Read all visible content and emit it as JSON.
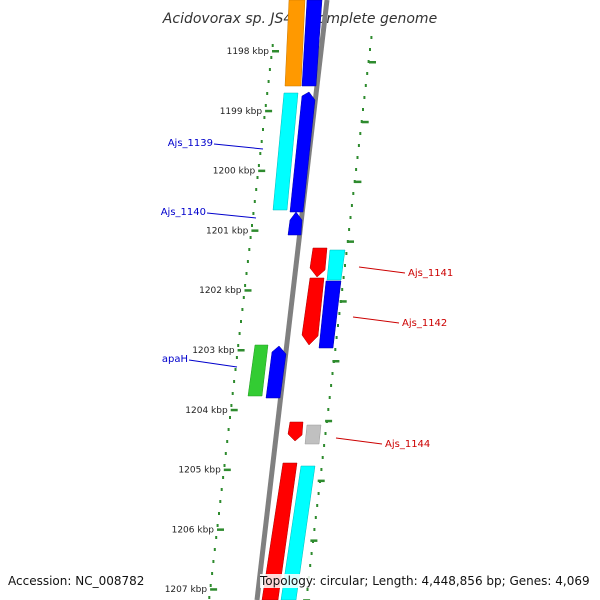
{
  "title": "Acidovorax sp. JS42, complete genome",
  "accession": "Accession: NC_008782",
  "topology": "Topology: circular; Length: 4,448,856 bp; Genes: 4,069",
  "colors": {
    "backbone": "#808080",
    "tick": "#2e8b2e",
    "label_forward": "#0000cc",
    "label_reverse": "#cc0000",
    "orange": "#ff9900",
    "blue": "#0000ff",
    "cyan": "#00ffff",
    "red": "#ff0000",
    "green": "#33cc33",
    "gray": "#c0c0c0"
  },
  "ticks": [
    {
      "label": "1198 kbp"
    },
    {
      "label": "1199 kbp"
    },
    {
      "label": "1200 kbp"
    },
    {
      "label": "1201 kbp"
    },
    {
      "label": "1202 kbp"
    },
    {
      "label": "1203 kbp"
    },
    {
      "label": "1204 kbp"
    },
    {
      "label": "1205 kbp"
    },
    {
      "label": "1206 kbp"
    },
    {
      "label": "1207 kbp"
    }
  ],
  "genes": [
    {
      "name": "Ajs_1139",
      "strand": "forward"
    },
    {
      "name": "Ajs_1140",
      "strand": "forward"
    },
    {
      "name": "apaH",
      "strand": "forward"
    },
    {
      "name": "Ajs_1141",
      "strand": "reverse"
    },
    {
      "name": "Ajs_1142",
      "strand": "reverse"
    },
    {
      "name": "Ajs_1144",
      "strand": "reverse"
    }
  ]
}
